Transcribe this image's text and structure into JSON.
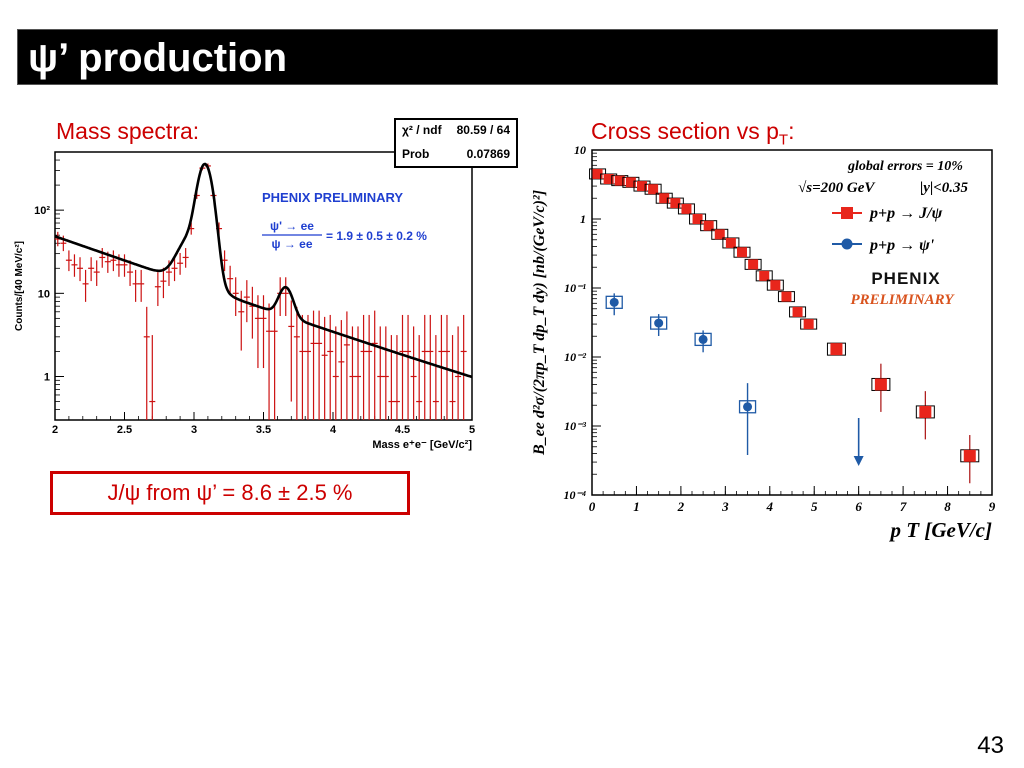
{
  "title": "ψ’ production",
  "mass_label": "Mass spectra:",
  "xsec_label": "Cross section vs p",
  "xsec_label_sub": "T",
  "xsec_label_end": ":",
  "result": "J/ψ from ψ’ = 8.6 ± 2.5 %",
  "page_number": "43",
  "stats": {
    "chi2_label": "χ² / ndf",
    "chi2_value": "80.59 / 64",
    "prob_label": "Prob",
    "prob_value": "0.07869"
  },
  "left_plot": {
    "prelim": "PHENIX PRELIMINARY",
    "ratio_num": "ψ' → ee",
    "ratio_den": "ψ → ee",
    "ratio_value": "= 1.9 ± 0.5 ± 0.2 %",
    "ylabel": "Counts/[40 MeV/c²]",
    "xlabel": "Mass e⁺e⁻ [GeV/c²]",
    "xticks": [
      "2",
      "2.5",
      "3",
      "3.5",
      "4",
      "4.5",
      "5"
    ],
    "yticks": [
      "1",
      "10",
      "10²"
    ]
  },
  "right_plot": {
    "global_errors": "global errors = 10%",
    "energy": "√s=200 GeV",
    "rapidity": "|y|<0.35",
    "legend_jpsi": "p+p → J/ψ",
    "legend_psip": "p+p → ψ'",
    "logo": "PHENIX",
    "prelim": "PRELIMINARY",
    "xlabel": "p T [GeV/c]",
    "ylabel": "B_ee d²σ/(2πp_T dp_T dy) [nb/(GeV/c)²]",
    "xticks": [
      "0",
      "1",
      "2",
      "3",
      "4",
      "5",
      "6",
      "7",
      "8",
      "9"
    ],
    "yticks": [
      "10",
      "1",
      "10⁻¹",
      "10⁻²",
      "10⁻³",
      "10⁻⁴"
    ]
  },
  "chart_data": [
    {
      "type": "scatter",
      "xlabel": "Mass e⁺e⁻ [GeV/c²]",
      "ylabel": "Counts/[40 MeV/c²]",
      "xlim": [
        2,
        5
      ],
      "ylim": [
        0.3,
        500
      ],
      "log_y": true,
      "series": [
        {
          "x": [
            2.02,
            2.06,
            2.1,
            2.14,
            2.18,
            2.22,
            2.26,
            2.3,
            2.34,
            2.38,
            2.42,
            2.46,
            2.5,
            2.54,
            2.58,
            2.62,
            2.66,
            2.7,
            2.74,
            2.78,
            2.82,
            2.86,
            2.9,
            2.94,
            2.98,
            3.02,
            3.06,
            3.1,
            3.14,
            3.18,
            3.22,
            3.26,
            3.3,
            3.34,
            3.38,
            3.42,
            3.46,
            3.5,
            3.54,
            3.58,
            3.62,
            3.66,
            3.7,
            3.74,
            3.78,
            3.82,
            3.86,
            3.9,
            3.94,
            3.98,
            4.02,
            4.06,
            4.1,
            4.14,
            4.18,
            4.22,
            4.26,
            4.3,
            4.34,
            4.38,
            4.42,
            4.46,
            4.5,
            4.54,
            4.58,
            4.62,
            4.66,
            4.7,
            4.74,
            4.78,
            4.82,
            4.86,
            4.9,
            4.94
          ],
          "y": [
            45,
            40,
            25,
            22,
            20,
            13,
            20,
            18,
            27,
            24,
            25,
            22,
            22,
            18,
            13,
            13,
            3,
            0.5,
            12,
            14,
            18,
            20,
            23,
            27,
            60,
            150,
            320,
            340,
            150,
            60,
            25,
            15,
            10,
            6,
            9,
            7,
            5,
            5,
            3.5,
            3.5,
            10,
            10,
            4,
            3,
            2,
            2,
            2.5,
            2.5,
            1.8,
            2,
            1,
            1.5,
            2.4,
            1,
            1,
            2,
            2,
            2.5,
            1,
            1,
            0.5,
            0.5,
            2,
            2,
            1,
            0.5,
            2,
            2,
            0.5,
            2,
            2,
            0.5,
            1,
            2
          ]
        }
      ]
    },
    {
      "type": "scatter",
      "xlabel": "p T [GeV/c]",
      "ylabel": "B_ee d²σ/(2πp_T dp_T dy) [nb/(GeV/c)²]",
      "xlim": [
        0,
        9
      ],
      "ylim": [
        0.0001,
        10
      ],
      "log_y": true,
      "series": [
        {
          "name": "p+p → J/ψ",
          "color": "#e8261c",
          "x": [
            0.125,
            0.375,
            0.625,
            0.875,
            1.125,
            1.375,
            1.625,
            1.875,
            2.125,
            2.375,
            2.625,
            2.875,
            3.125,
            3.375,
            3.625,
            3.875,
            4.125,
            4.375,
            4.625,
            4.875,
            5.5,
            6.5,
            7.5,
            8.5
          ],
          "y": [
            4.5,
            3.8,
            3.6,
            3.4,
            3.0,
            2.7,
            2.0,
            1.7,
            1.4,
            1.0,
            0.8,
            0.6,
            0.45,
            0.33,
            0.22,
            0.15,
            0.11,
            0.075,
            0.045,
            0.03,
            0.013,
            0.004,
            0.0016,
            0.00037
          ]
        },
        {
          "name": "p+p → ψ'",
          "color": "#1f5aa6",
          "x": [
            0.5,
            1.5,
            2.5,
            3.5
          ],
          "y": [
            0.062,
            0.031,
            0.018,
            0.0019
          ]
        }
      ]
    }
  ]
}
